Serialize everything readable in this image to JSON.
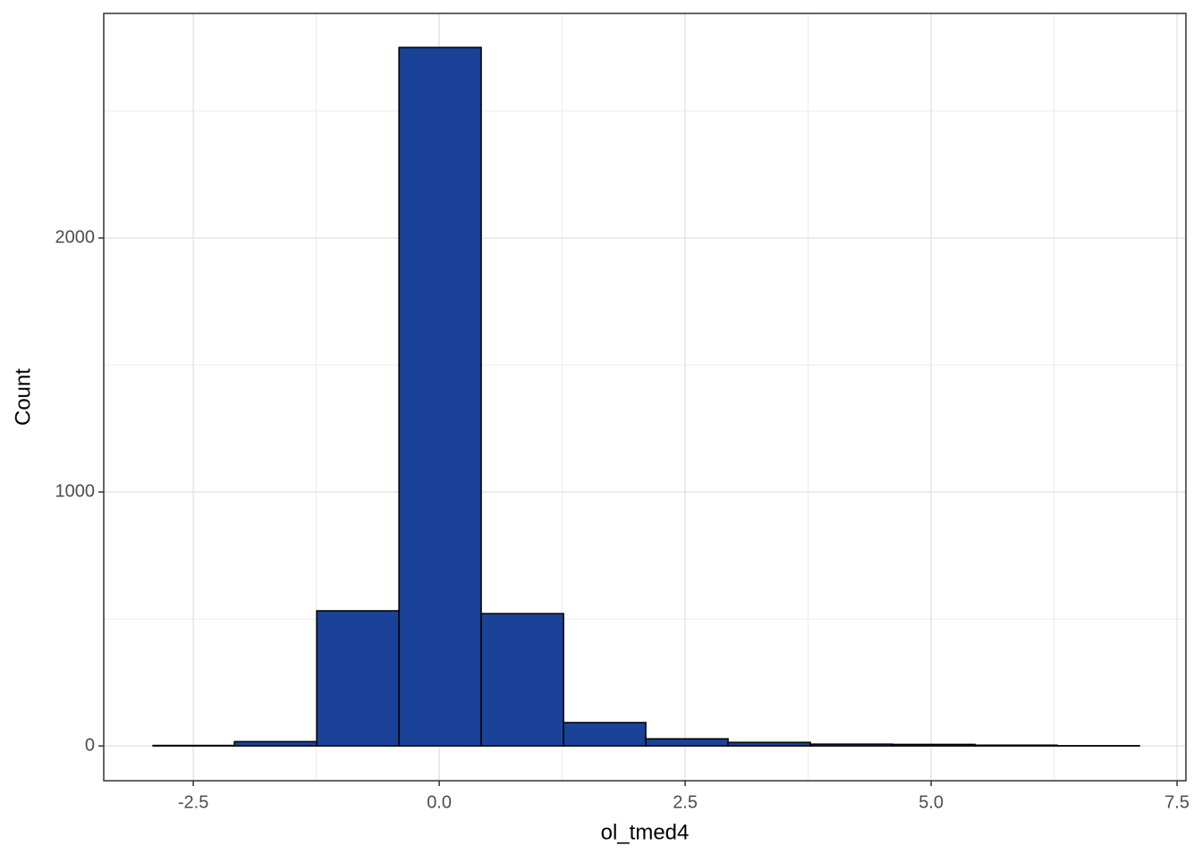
{
  "chart_data": {
    "type": "histogram",
    "x_label": "ol_tmed4",
    "y_label": "Count",
    "bins": [
      -2.909,
      -2.082,
      -1.245,
      -0.409,
      0.427,
      1.264,
      2.1,
      2.936,
      3.773,
      4.609,
      5.445,
      6.282,
      7.118
    ],
    "values": [
      2,
      17,
      532,
      2750,
      521,
      92,
      28,
      14,
      7,
      6,
      3,
      1
    ],
    "color": "#1a4298",
    "edge_color": "#000000",
    "xlim": [
      -3.41,
      7.59
    ],
    "ylim": [
      -137,
      2884
    ],
    "xticks": [
      -2.5,
      {
        "value": 0,
        "label": "0.0"
      },
      2.5,
      {
        "value": 5,
        "label": "5.0"
      },
      7.5
    ],
    "yticks": [
      0,
      1000,
      2000
    ],
    "x_minor_ticks": [
      -1.25,
      1.25,
      3.75,
      6.25
    ],
    "y_minor_ticks": [
      500,
      1500,
      2500
    ],
    "grid": true
  }
}
